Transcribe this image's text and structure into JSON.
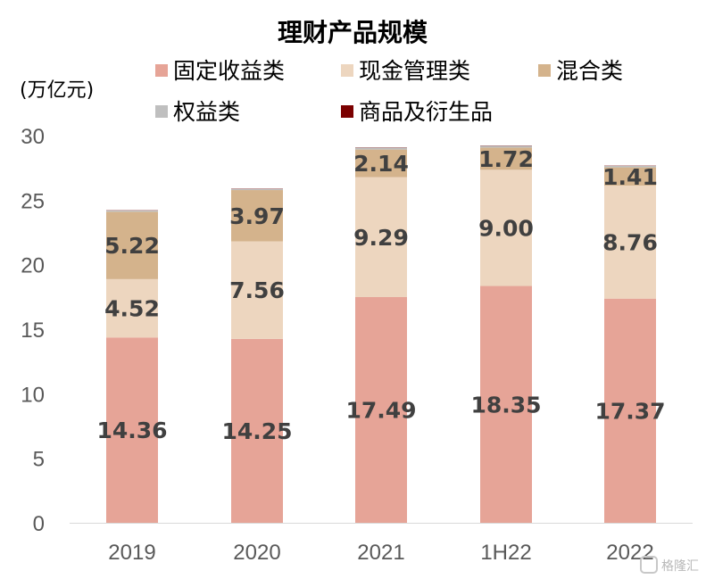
{
  "chart_data": {
    "type": "stacked-bar",
    "title": "理财产品规模",
    "unit_label": "(万亿元)",
    "categories": [
      "2019",
      "2020",
      "2021",
      "1H22",
      "2022"
    ],
    "ylim": [
      0,
      30
    ],
    "yticks": [
      0,
      5,
      10,
      15,
      20,
      25,
      30
    ],
    "grid": false,
    "legend_position": "top",
    "series": [
      {
        "name": "固定收益类",
        "color": "#E6A497",
        "values": [
          14.36,
          14.25,
          17.49,
          18.35,
          17.37
        ],
        "labels": [
          "14.36",
          "14.25",
          "17.49",
          "18.35",
          "17.37"
        ]
      },
      {
        "name": "现金管理类",
        "color": "#EDD6BF",
        "values": [
          4.52,
          7.56,
          9.29,
          9.0,
          8.76
        ],
        "labels": [
          "4.52",
          "7.56",
          "9.29",
          "9.00",
          "8.76"
        ]
      },
      {
        "name": "混合类",
        "color": "#D4B38C",
        "values": [
          5.22,
          3.97,
          2.14,
          1.72,
          1.41
        ],
        "labels": [
          "5.22",
          "3.97",
          "2.14",
          "1.72",
          "1.41"
        ]
      },
      {
        "name": "权益类",
        "color": "#BFBFBF",
        "values": [
          0.1,
          0.1,
          0.15,
          0.15,
          0.12
        ],
        "labels": [
          "",
          "",
          "",
          "",
          ""
        ]
      },
      {
        "name": "商品及衍生品",
        "color": "#7B0000",
        "values": [
          0.02,
          0.02,
          0.02,
          0.02,
          0.02
        ],
        "labels": [
          "",
          "",
          "",
          "",
          ""
        ]
      }
    ]
  },
  "watermark": "格隆汇"
}
